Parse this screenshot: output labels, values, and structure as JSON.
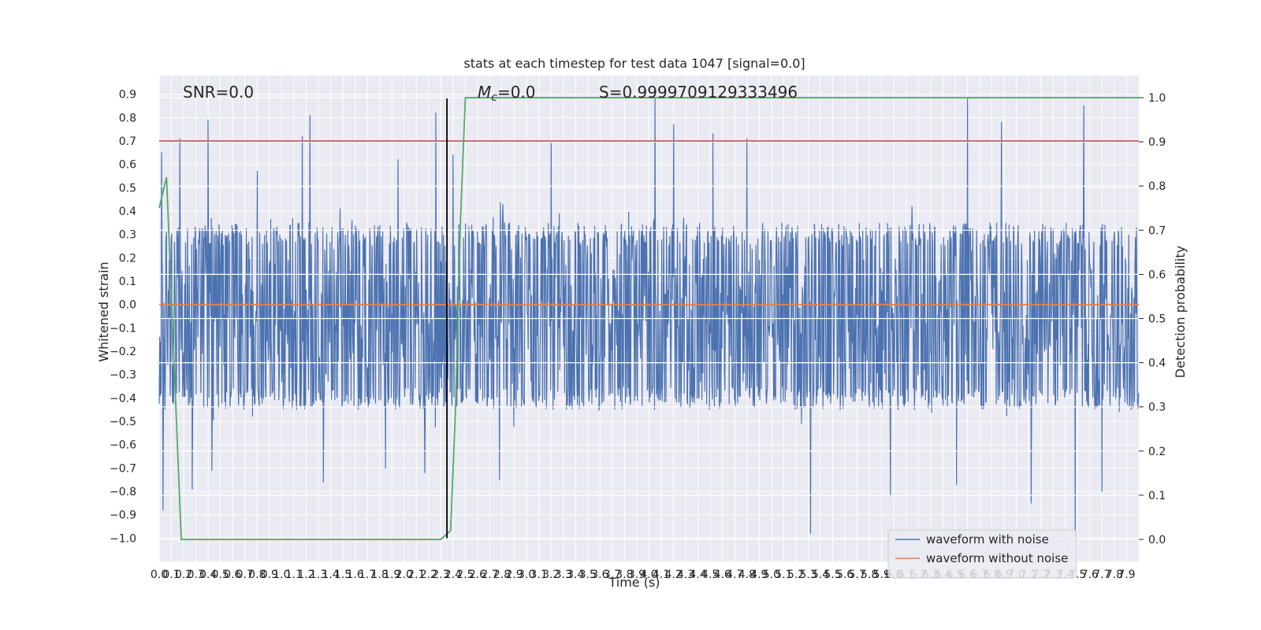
{
  "chart_data": {
    "type": "line",
    "title": "stats at each timestep for test data 1047 [signal=0.0]",
    "xlabel": "Time (s)",
    "ylabel": "Whitened strain",
    "y2label": "Detection probability",
    "xlim": [
      0.0,
      8.0
    ],
    "ylim": [
      -1.1,
      0.98
    ],
    "y2lim": [
      -0.05,
      1.05
    ],
    "x_ticks": [
      0.0,
      0.1,
      0.2,
      0.3,
      0.4,
      0.5,
      0.6,
      0.7,
      0.8,
      0.9,
      1.0,
      1.1,
      1.2,
      1.3,
      1.4,
      1.5,
      1.6,
      1.7,
      1.8,
      1.9,
      2.0,
      2.1,
      2.2,
      2.3,
      2.4,
      2.5,
      2.6,
      2.7,
      2.8,
      2.9,
      3.0,
      3.1,
      3.2,
      3.3,
      3.4,
      3.5,
      3.6,
      3.7,
      3.8,
      3.9,
      4.0,
      4.1,
      4.2,
      4.3,
      4.4,
      4.5,
      4.6,
      4.7,
      4.8,
      4.9,
      5.0,
      5.1,
      5.2,
      5.3,
      5.4,
      5.5,
      5.6,
      5.7,
      5.8,
      5.9,
      6.0,
      6.1,
      6.2,
      6.3,
      6.4,
      6.5,
      6.6,
      6.7,
      6.8,
      6.9,
      7.0,
      7.1,
      7.2,
      7.3,
      7.4,
      7.5,
      7.6,
      7.7,
      7.8,
      7.9
    ],
    "x_tick_labels": [
      "0.0",
      "0.1",
      "0.2",
      "0.3",
      "0.4",
      "0.5",
      "0.6",
      "0.7",
      "0.8",
      "0.9",
      "1.0",
      "1.1",
      "1.2",
      "1.3",
      "1.4",
      "1.5",
      "1.6",
      "1.7",
      "1.8",
      "1.9",
      "2.0",
      "2.1",
      "2.2",
      "2.3",
      "2.4",
      "2.5",
      "2.6",
      "2.7",
      "2.8",
      "2.9",
      "3.0",
      "3.1",
      "3.2",
      "3.3",
      "3.4",
      "3.5",
      "3.6",
      "3.7",
      "3.8",
      "3.9",
      "4.0",
      "4.1",
      "4.2",
      "4.3",
      "4.4",
      "4.5",
      "4.6",
      "4.7",
      "4.8",
      "4.9",
      "5.0",
      "5.1",
      "5.2",
      "5.3",
      "5.4",
      "5.5",
      "5.6",
      "5.7",
      "5.8",
      "5.9",
      "6.0",
      "6.1",
      "6.2",
      "6.3",
      "6.4",
      "6.5",
      "6.6",
      "6.7",
      "6.8",
      "6.9",
      "7.0",
      "7.1",
      "7.2",
      "7.3",
      "7.4",
      "7.5",
      "7.6",
      "7.7",
      "7.8",
      "7.9"
    ],
    "y_ticks": [
      0.9,
      0.8,
      0.7,
      0.6,
      0.5,
      0.4,
      0.3,
      0.2,
      0.1,
      0.0,
      -0.1,
      -0.2,
      -0.3,
      -0.4,
      -0.5,
      -0.6,
      -0.7,
      -0.8,
      -0.9,
      -1.0
    ],
    "y_tick_labels": [
      "0.9",
      "0.8",
      "0.7",
      "0.6",
      "0.5",
      "0.4",
      "0.3",
      "0.2",
      "0.1",
      "0.0",
      "−0.1",
      "−0.2",
      "−0.3",
      "−0.4",
      "−0.5",
      "−0.6",
      "−0.7",
      "−0.8",
      "−0.9",
      "−1.0"
    ],
    "y2_ticks": [
      1.0,
      0.9,
      0.8,
      0.7,
      0.6,
      0.5,
      0.4,
      0.3,
      0.2,
      0.1,
      0.0
    ],
    "y2_tick_labels": [
      "1.0",
      "0.9",
      "0.8",
      "0.7",
      "0.6",
      "0.5",
      "0.4",
      "0.3",
      "0.2",
      "0.1",
      "0.0"
    ],
    "grid": true,
    "legend_position": "lower-right",
    "annotations": {
      "snr": "SNR=0.0",
      "mc_symbol": "M",
      "mc_sub": "c",
      "mc_value": "=0.0",
      "score": "S=0.9999709129333496"
    },
    "threshold": {
      "value": 0.7,
      "color": "#c44e52"
    },
    "event_time": 2.35,
    "series": [
      {
        "name": "waveform with noise",
        "color": "#4c72b0",
        "n_samples": 2048,
        "typical_range": [
          -0.45,
          0.35
        ],
        "peaks": [
          {
            "x": 0.02,
            "y": 0.65
          },
          {
            "x": 0.17,
            "y": 0.71
          },
          {
            "x": 0.4,
            "y": 0.79
          },
          {
            "x": 0.8,
            "y": 0.57
          },
          {
            "x": 1.17,
            "y": 0.72
          },
          {
            "x": 1.23,
            "y": 0.81
          },
          {
            "x": 1.95,
            "y": 0.62
          },
          {
            "x": 2.26,
            "y": 0.82
          },
          {
            "x": 2.4,
            "y": 0.64
          },
          {
            "x": 3.2,
            "y": 0.69
          },
          {
            "x": 4.05,
            "y": 0.88
          },
          {
            "x": 4.2,
            "y": 0.77
          },
          {
            "x": 4.52,
            "y": 0.73
          },
          {
            "x": 4.8,
            "y": 0.71
          },
          {
            "x": 6.6,
            "y": 0.88
          },
          {
            "x": 6.88,
            "y": 0.78
          },
          {
            "x": 7.55,
            "y": 0.85
          }
        ],
        "troughs": [
          {
            "x": 0.03,
            "y": -0.88
          },
          {
            "x": 0.27,
            "y": -0.79
          },
          {
            "x": 0.43,
            "y": -0.71
          },
          {
            "x": 1.34,
            "y": -0.76
          },
          {
            "x": 1.85,
            "y": -0.7
          },
          {
            "x": 2.17,
            "y": -0.72
          },
          {
            "x": 2.78,
            "y": -0.75
          },
          {
            "x": 5.32,
            "y": -0.98
          },
          {
            "x": 5.97,
            "y": -0.82
          },
          {
            "x": 6.51,
            "y": -0.77
          },
          {
            "x": 7.12,
            "y": -0.85
          },
          {
            "x": 7.48,
            "y": -0.99
          },
          {
            "x": 7.7,
            "y": -0.8
          }
        ]
      },
      {
        "name": "waveform without noise",
        "color": "#dd8452",
        "y": 0.0
      },
      {
        "name": "detection probability",
        "color": "#55a868",
        "axis": "right",
        "x": [
          0.0,
          0.06,
          0.18,
          0.24,
          2.3,
          2.38,
          2.42,
          2.46,
          2.5,
          8.0
        ],
        "y": [
          0.75,
          0.82,
          0.0,
          0.0,
          0.0,
          0.02,
          0.3,
          0.72,
          1.0,
          1.0
        ]
      }
    ]
  }
}
